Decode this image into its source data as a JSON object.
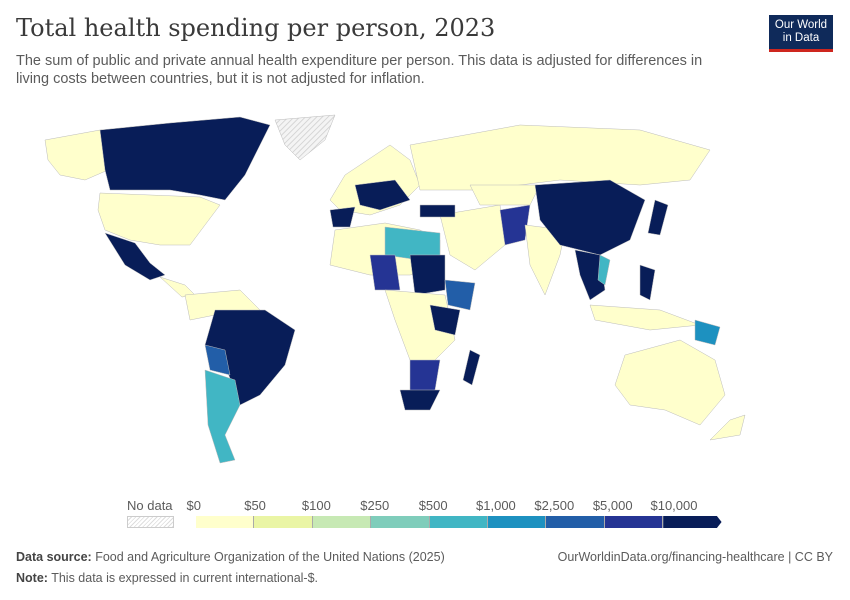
{
  "header": {
    "title": "Total health spending per person, 2023",
    "subtitle": "The sum of public and private annual health expenditure per person. This data is adjusted for differences in living costs between countries, but it is not adjusted for inflation.",
    "logo": "Our World in Data"
  },
  "legend": {
    "no_data": "No data",
    "labels": [
      "$0",
      "$50",
      "$100",
      "$250",
      "$500",
      "$1,000",
      "$2,500",
      "$5,000",
      "$10,000"
    ],
    "colors": [
      "#ffffcc",
      "#eaf5a5",
      "#c7e9b4",
      "#7fcdbb",
      "#41b6c4",
      "#1d91c0",
      "#225ea8",
      "#253494",
      "#081d58"
    ],
    "no_data_color": "#e0e0e0"
  },
  "footer": {
    "source_label": "Data source:",
    "source": "Food and Agriculture Organization of the United Nations (2025)",
    "url": "OurWorldinData.org/financing-healthcare | CC BY",
    "note_label": "Note:",
    "note": "This data is expressed in current international-$."
  }
}
